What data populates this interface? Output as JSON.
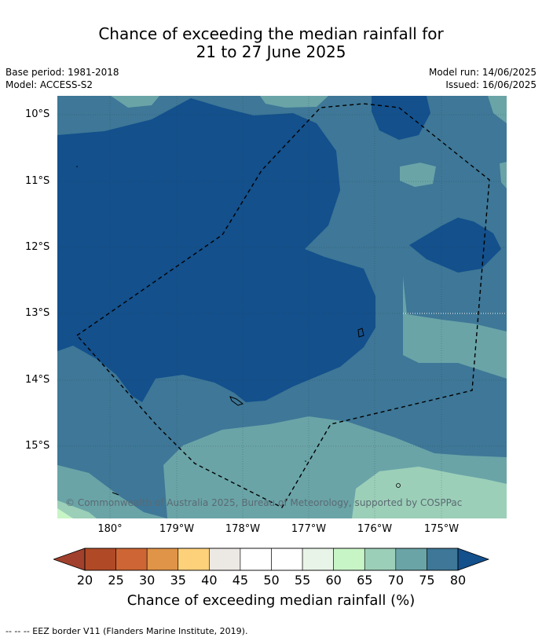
{
  "title": {
    "line1": "Chance of exceeding the median rainfall for",
    "line2": "21 to 27 June 2025"
  },
  "meta": {
    "base_period": "Base period: 1981-2018",
    "model": "Model: ACCESS-S2",
    "model_run": "Model run: 14/06/2025",
    "issued": "Issued: 16/06/2025"
  },
  "map": {
    "lat_labels": [
      "10°S",
      "11°S",
      "12°S",
      "13°S",
      "14°S",
      "15°S"
    ],
    "lon_labels": [
      "180°",
      "179°W",
      "178°W",
      "177°W",
      "176°W",
      "175°W"
    ],
    "copyright": "© Commonwealth of Australia 2025, Bureau of Meteorology, supported by COSPPac",
    "colors": {
      "c75_80": "#13508c",
      "c70_75": "#3e7797",
      "c65_70": "#6aa4a7",
      "c60_65": "#9ccfb8",
      "c55_60": "#c8f5c6"
    }
  },
  "colorbar": {
    "ticks": [
      "20",
      "25",
      "30",
      "35",
      "40",
      "45",
      "50",
      "55",
      "60",
      "65",
      "70",
      "75",
      "80"
    ],
    "colors": [
      "#b04a26",
      "#cd6634",
      "#e09447",
      "#fdd07a",
      "#ece8e4",
      "#ffffff",
      "#ffffff",
      "#e8f4e7",
      "#c8f5c6",
      "#9ccfb8",
      "#6aa4a7",
      "#3e7797"
    ],
    "under_color": "#a1402d",
    "over_color": "#13508c",
    "label": "Chance of exceeding median rainfall (%)"
  },
  "footnote": "--  --  -- EEZ border V11 (Flanders Marine Institute, 2019)."
}
